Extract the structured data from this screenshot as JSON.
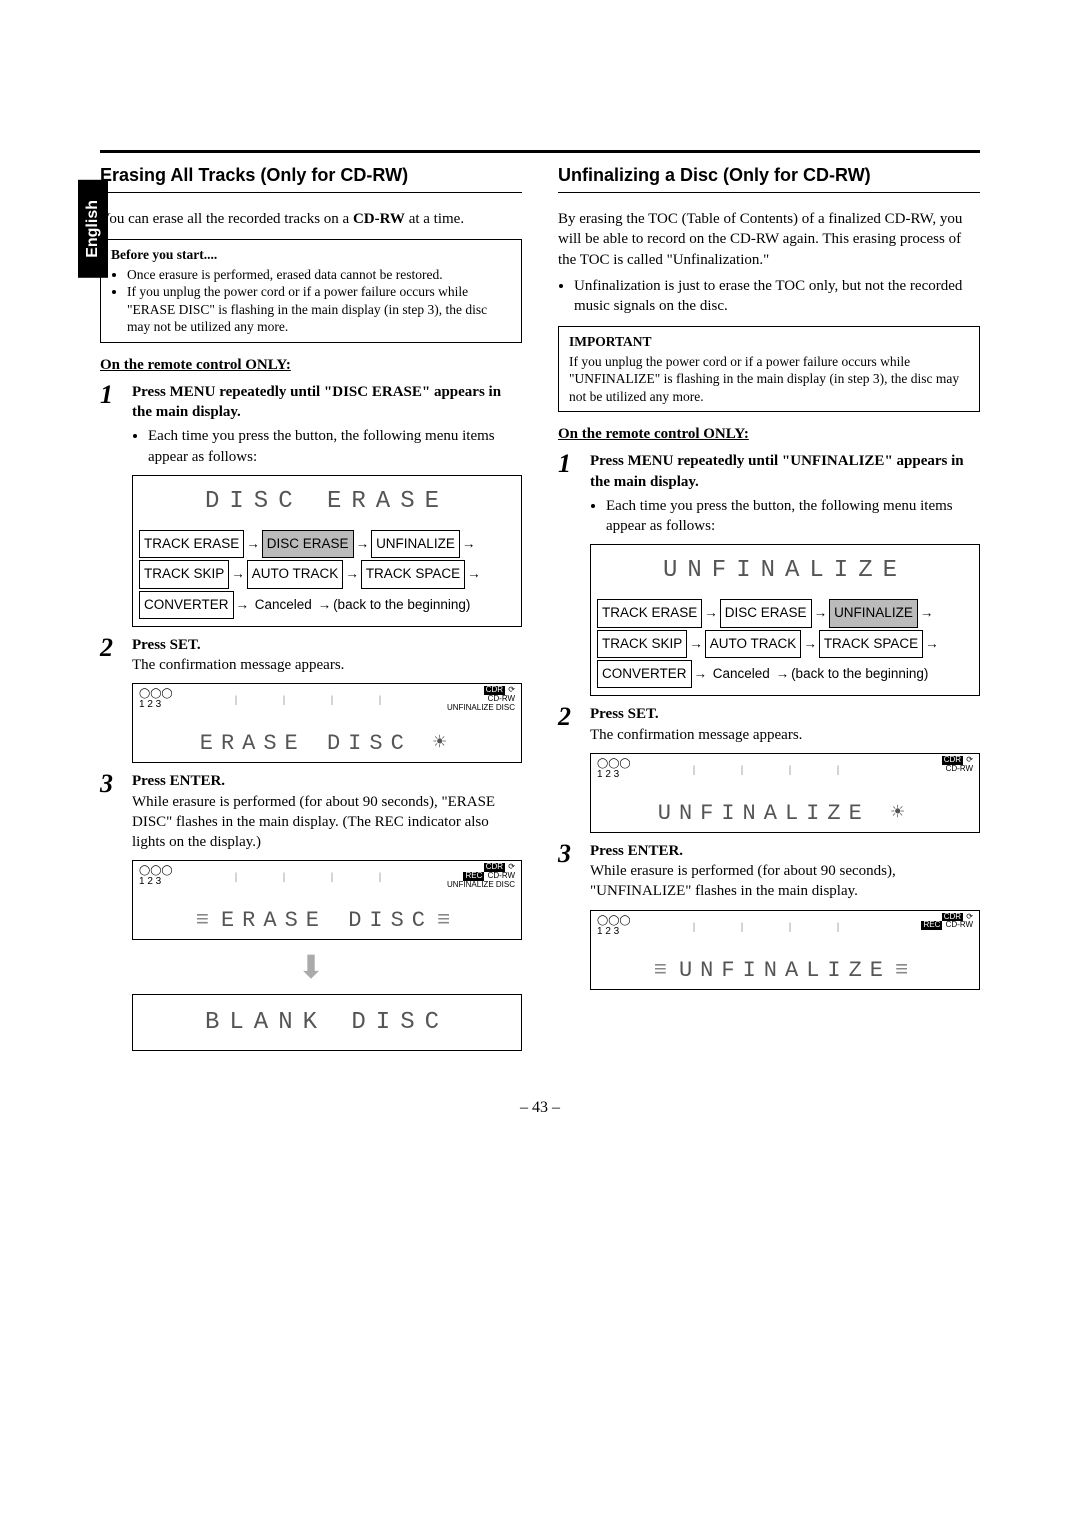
{
  "lang_tab": "English",
  "page_number": "– 43 –",
  "left": {
    "heading": "Erasing All Tracks (Only for CD-RW)",
    "intro_pre": "You can erase all the recorded tracks on a ",
    "intro_bold": "CD-RW",
    "intro_post": " at a time.",
    "before_box": {
      "title": "Before you start....",
      "bullets": [
        "Once erasure is performed, erased data cannot be restored.",
        "If you unplug the power cord or if a power failure occurs while \"ERASE DISC\" is flashing in the main display (in step 3), the disc may not be utilized any more."
      ]
    },
    "remote_only": "On the remote control ONLY:",
    "step1": {
      "lead": "Press MENU repeatedly until \"DISC ERASE\" appears in the main display.",
      "note": "Each time you press the button, the following menu items appear as follows:"
    },
    "lcd1": "DISC ERASE",
    "menu": {
      "row1": [
        "TRACK ERASE",
        "DISC ERASE",
        "UNFINALIZE"
      ],
      "hl_row1_idx": 1,
      "row2": [
        "TRACK SKIP",
        "AUTO TRACK",
        "TRACK SPACE"
      ],
      "row3_item": "CONVERTER",
      "row3_text": " Canceled ",
      "row3_tail": "(back to the beginning)"
    },
    "step2": {
      "lead": "Press SET.",
      "text": "The confirmation message appears."
    },
    "panel2_text": "ERASE DISC",
    "panel2_tr": {
      "cdr": "CDR",
      "cdrw": "CD-RW",
      "unfin": "UNFINALIZE DISC"
    },
    "step3": {
      "lead": "Press ENTER.",
      "text": "While erasure is performed (for about 90 seconds), \"ERASE DISC\" flashes in the main display. (The REC indicator also lights on the display.)"
    },
    "panel3_text": "ERASE DISC",
    "panel3_tr": {
      "cdr": "CDR",
      "rec": "REC",
      "cdrw": "CD-RW",
      "unfin": "UNFINALIZE DISC"
    },
    "lcd_final": "BLANK DISC"
  },
  "right": {
    "heading": "Unfinalizing a Disc (Only for CD-RW)",
    "para1": "By erasing the TOC (Table of Contents) of a finalized CD-RW, you will be able to record on the CD-RW again. This erasing process of the TOC is called \"Unfinalization.\"",
    "bullet1": "Unfinalization is just to erase the TOC only, but not the recorded music signals on the disc.",
    "imp_box": {
      "title": "IMPORTANT",
      "text": "If you unplug the power cord or if a power failure occurs while \"UNFINALIZE\" is flashing in the main display (in step 3), the disc may not be utilized any more."
    },
    "remote_only": "On the remote control ONLY:",
    "step1": {
      "lead": "Press MENU repeatedly until \"UNFINALIZE\" appears in the main display.",
      "note": "Each time you press the button, the following menu items appear as follows:"
    },
    "lcd1": "UNFINALIZE",
    "menu": {
      "row1": [
        "TRACK ERASE",
        "DISC ERASE",
        "UNFINALIZE"
      ],
      "hl_row1_idx": 2,
      "row2": [
        "TRACK SKIP",
        "AUTO TRACK",
        "TRACK SPACE"
      ],
      "row3_item": "CONVERTER",
      "row3_text": " Canceled ",
      "row3_tail": "(back to the beginning)"
    },
    "step2": {
      "lead": "Press SET.",
      "text": "The confirmation message appears."
    },
    "panel2_text": "UNFINALIZE",
    "panel2_tr": {
      "cdr": "CDR",
      "cdrw": "CD-RW"
    },
    "step3": {
      "lead": "Press ENTER.",
      "text": "While erasure is performed (for about 90 seconds), \"UNFINALIZE\" flashes in the main display."
    },
    "panel3_text": "UNFINALIZE",
    "panel3_tr": {
      "cdr": "CDR",
      "rec": "REC",
      "cdrw": "CD-RW"
    }
  },
  "icons_tl": "1 2 3",
  "arrow": "→",
  "down_arrow": "⬇"
}
